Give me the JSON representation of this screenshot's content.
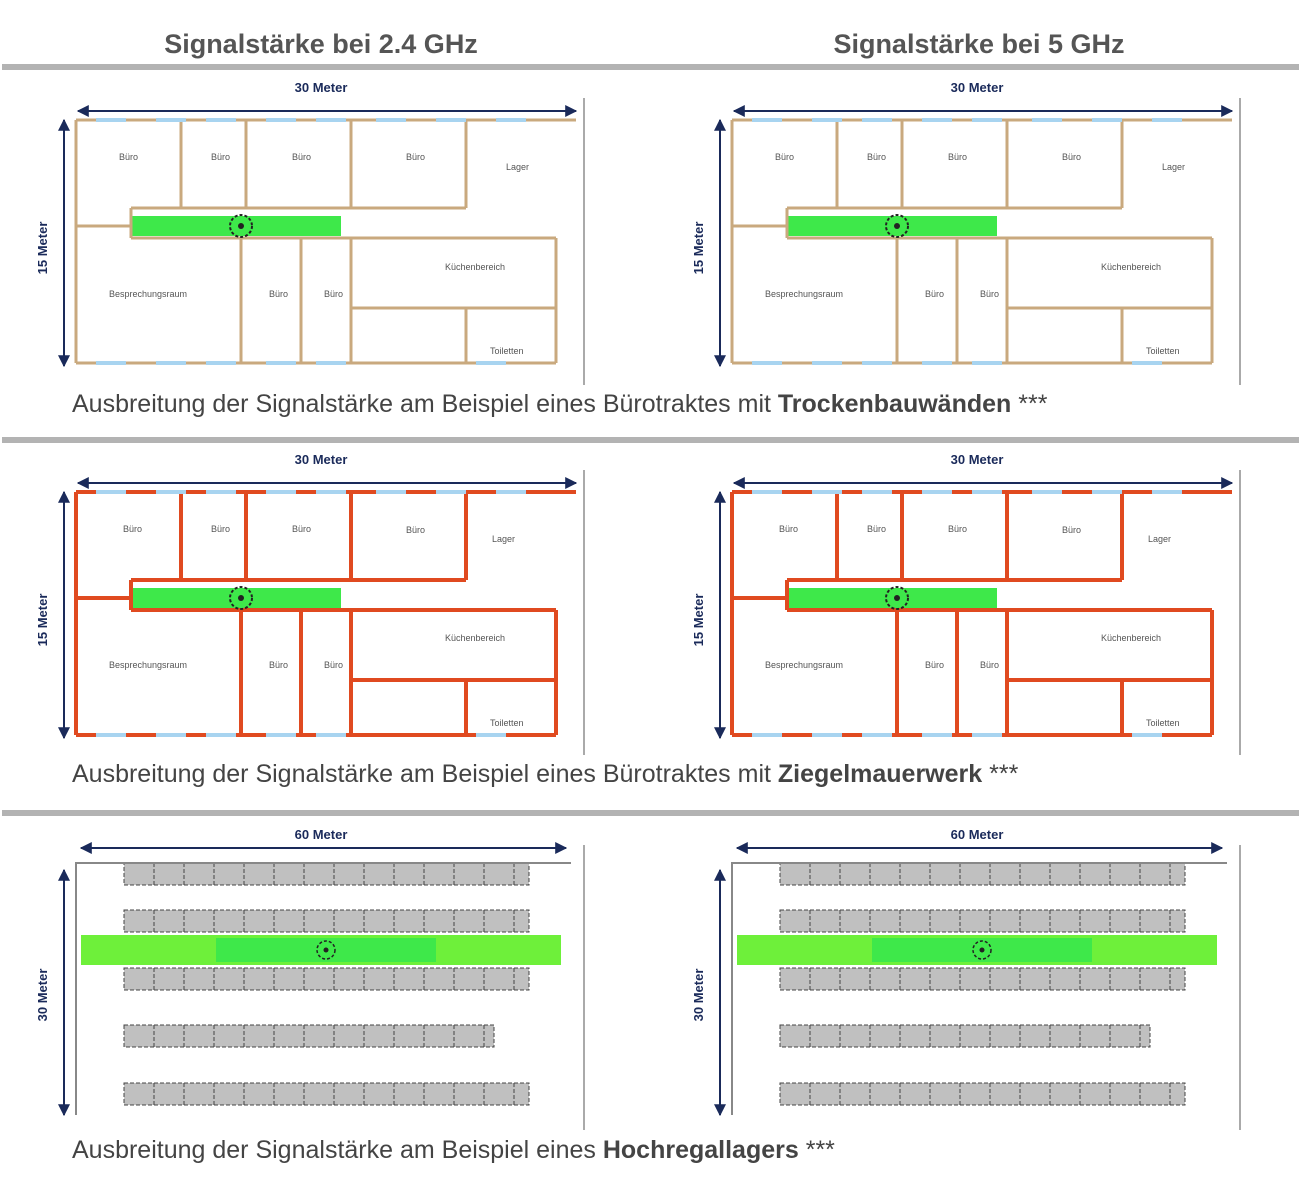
{
  "headers": [
    "Signalstärke bei 2.4 GHz",
    "Signalstärke bei 5 GHz"
  ],
  "sections": [
    {
      "caption": {
        "text": "Ausbreitung der Signalstärke am Beispiel eines Bürotraktes mit ",
        "bold": "Trockenbauwänden",
        "suffix": " ***"
      },
      "width_label": "30 Meter",
      "height_label": "15 Meter",
      "rooms": [
        "Büro",
        "Büro",
        "Büro",
        "Büro",
        "Lager",
        "Besprechungsraum",
        "Büro",
        "Büro",
        "Küchenbereich",
        "Toiletten"
      ]
    },
    {
      "caption": {
        "text": "Ausbreitung der Signalstärke am Beispiel eines Bürotraktes mit ",
        "bold": "Ziegelmauerwerk",
        "suffix": " ***"
      },
      "width_label": "30 Meter",
      "height_label": "15 Meter",
      "rooms": [
        "Büro",
        "Büro",
        "Büro",
        "Büro",
        "Lager",
        "Küchenbereich",
        "Besprechungsraum",
        "Büro",
        "Büro",
        "Toiletten"
      ]
    },
    {
      "caption": {
        "text": "Ausbreitung der Signalstärke am Beispiel eines ",
        "bold": "Hochregallagers",
        "suffix": " ***"
      },
      "width_label": "60 Meter",
      "height_label": "30 Meter"
    }
  ]
}
